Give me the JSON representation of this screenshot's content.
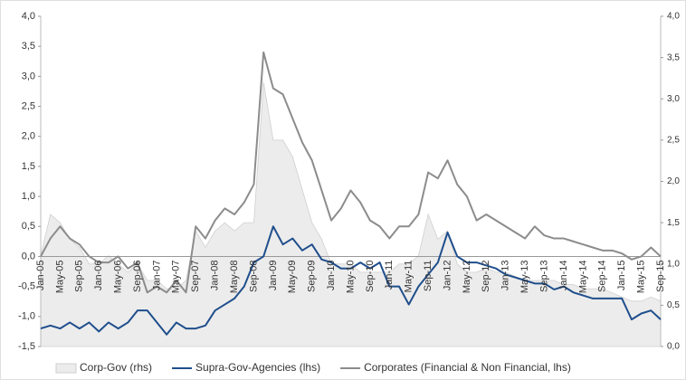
{
  "chart_data": {
    "type": "line",
    "categories": [
      "Jan-05",
      null,
      "May-05",
      null,
      "Sep-05",
      null,
      "Jan-06",
      null,
      "May-06",
      null,
      "Sep-06",
      null,
      "Jan-07",
      null,
      "May-07",
      null,
      "Sep-07",
      null,
      "Jan-08",
      null,
      "May-08",
      null,
      "Sep-08",
      null,
      "Jan-09",
      null,
      "May-09",
      null,
      "Sep-09",
      null,
      "Jan-10",
      null,
      "May-10",
      null,
      "Sep-10",
      null,
      "Jan-11",
      null,
      "May-11",
      null,
      "Sep-11",
      null,
      "Jan-12",
      null,
      "May-12",
      null,
      "Sep-12",
      null,
      "Jan-13",
      null,
      "May-13",
      null,
      "Sep-13",
      null,
      "Jan-14",
      null,
      "May-14",
      null,
      "Sep-14",
      null,
      "Jan-15",
      null,
      "May-15",
      null,
      "Sep-15"
    ],
    "series": [
      {
        "name": "Corp-Gov (rhs)",
        "type": "area",
        "axis": "y2",
        "color": "#ececec",
        "values": [
          1.1,
          1.6,
          1.5,
          1.3,
          1.2,
          1.0,
          1.0,
          1.1,
          1.0,
          0.9,
          1.0,
          0.8,
          0.8,
          0.7,
          0.7,
          0.8,
          1.4,
          1.2,
          1.4,
          1.5,
          1.4,
          1.5,
          1.5,
          3.2,
          2.5,
          2.5,
          2.3,
          1.9,
          1.5,
          1.3,
          1.0,
          1.0,
          1.0,
          0.9,
          0.9,
          0.9,
          0.9,
          1.0,
          1.0,
          1.1,
          1.6,
          1.3,
          1.4,
          1.0,
          0.9,
          0.9,
          0.95,
          0.9,
          0.9,
          0.85,
          0.8,
          0.8,
          0.8,
          0.8,
          0.75,
          0.75,
          0.7,
          0.7,
          0.7,
          0.65,
          0.6,
          0.55,
          0.55,
          0.6,
          0.55
        ]
      },
      {
        "name": "Supra-Gov-Agencies (lhs)",
        "type": "line",
        "color": "#1f4e8c",
        "values": [
          -1.2,
          -1.15,
          -1.2,
          -1.1,
          -1.2,
          -1.1,
          -1.25,
          -1.1,
          -1.2,
          -1.1,
          -0.9,
          -0.9,
          -1.1,
          -1.3,
          -1.1,
          -1.2,
          -1.2,
          -1.15,
          -0.9,
          -0.8,
          -0.7,
          -0.5,
          -0.1,
          0.0,
          0.5,
          0.2,
          0.3,
          0.1,
          0.2,
          -0.05,
          -0.1,
          -0.2,
          -0.2,
          -0.1,
          -0.2,
          -0.1,
          -0.5,
          -0.5,
          -0.8,
          -0.5,
          -0.3,
          -0.1,
          0.4,
          0.0,
          -0.1,
          -0.1,
          -0.15,
          -0.2,
          -0.3,
          -0.35,
          -0.4,
          -0.45,
          -0.45,
          -0.55,
          -0.5,
          -0.6,
          -0.65,
          -0.7,
          -0.7,
          -0.7,
          -0.7,
          -1.05,
          -0.95,
          -0.9,
          -1.05
        ]
      },
      {
        "name": "Corporates (Financial & Non Financial, lhs)",
        "type": "line",
        "color": "#8c8c8c",
        "values": [
          0.0,
          0.3,
          0.5,
          0.3,
          0.2,
          0.0,
          -0.1,
          -0.1,
          0.0,
          -0.2,
          -0.1,
          -0.6,
          -0.5,
          -0.6,
          -0.4,
          -0.6,
          0.5,
          0.3,
          0.6,
          0.8,
          0.7,
          0.9,
          1.2,
          3.4,
          2.8,
          2.7,
          2.3,
          1.9,
          1.6,
          1.1,
          0.6,
          0.8,
          1.1,
          0.9,
          0.6,
          0.5,
          0.3,
          0.5,
          0.5,
          0.7,
          1.4,
          1.3,
          1.6,
          1.2,
          1.0,
          0.6,
          0.7,
          0.6,
          0.5,
          0.4,
          0.3,
          0.5,
          0.35,
          0.3,
          0.3,
          0.25,
          0.2,
          0.15,
          0.1,
          0.1,
          0.05,
          -0.05,
          0.0,
          0.15,
          0.0
        ]
      }
    ],
    "ylim": [
      -1.5,
      4.0
    ],
    "yticks": [
      {
        "value": -1.5,
        "label": "-1,5"
      },
      {
        "value": -1.0,
        "label": "-1,0"
      },
      {
        "value": -0.5,
        "label": "-0,5"
      },
      {
        "value": 0.0,
        "label": "0,0"
      },
      {
        "value": 0.5,
        "label": "0,5"
      },
      {
        "value": 1.0,
        "label": "1,0"
      },
      {
        "value": 1.5,
        "label": "1,5"
      },
      {
        "value": 2.0,
        "label": "2,0"
      },
      {
        "value": 2.5,
        "label": "2,5"
      },
      {
        "value": 3.0,
        "label": "3,0"
      },
      {
        "value": 3.5,
        "label": "3,5"
      },
      {
        "value": 4.0,
        "label": "4,0"
      }
    ],
    "y2lim": [
      0.0,
      4.0
    ],
    "y2ticks": [
      {
        "value": 0.0,
        "label": "0,0"
      },
      {
        "value": 0.5,
        "label": "0,5"
      },
      {
        "value": 1.0,
        "label": "1,0"
      },
      {
        "value": 1.5,
        "label": "1,5"
      },
      {
        "value": 2.0,
        "label": "2,0"
      },
      {
        "value": 2.5,
        "label": "2,5"
      },
      {
        "value": 3.0,
        "label": "3,0"
      },
      {
        "value": 3.5,
        "label": "3,5"
      },
      {
        "value": 4.0,
        "label": "4,0"
      }
    ],
    "grid": false,
    "legend": "bottom"
  }
}
